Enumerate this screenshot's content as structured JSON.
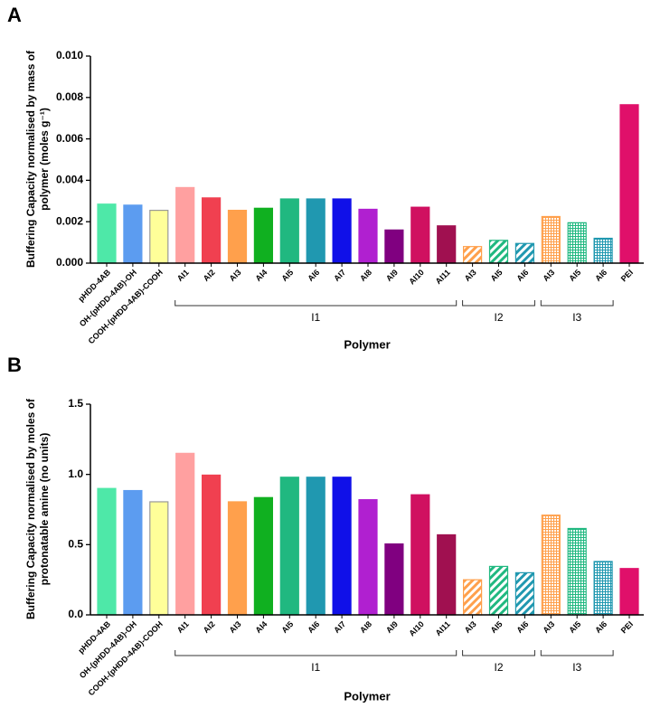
{
  "chart_data": [
    {
      "type": "bar",
      "panel_label": "A",
      "ylabel": "Buffering Capacity normalised by mass of polymer (moles g⁻¹)",
      "xlabel": "Polymer",
      "ylim": [
        0,
        0.01
      ],
      "yticks": [
        {
          "value": 0,
          "label": "0.000"
        },
        {
          "value": 0.002,
          "label": "0.002"
        },
        {
          "value": 0.004,
          "label": "0.004"
        },
        {
          "value": 0.006,
          "label": "0.006"
        },
        {
          "value": 0.008,
          "label": "0.008"
        },
        {
          "value": 0.01,
          "label": "0.010"
        }
      ],
      "groups": [
        {
          "name": null,
          "pattern": "solid",
          "categories": [
            "pHDD-4AB",
            "OH-(pHDD-4AB)-OH",
            "COOH-(pHDD-4AB)-COOH"
          ],
          "values": [
            0.00285,
            0.0028,
            0.00255
          ],
          "colors": [
            "#4ee8a8",
            "#5c9cf0",
            "#ffff99"
          ]
        },
        {
          "name": "I1",
          "pattern": "solid",
          "categories": [
            "AI1",
            "AI2",
            "AI3",
            "AI4",
            "AI5",
            "AI6",
            "AI7",
            "AI8",
            "AI9",
            "AI10",
            "AI11"
          ],
          "values": [
            0.00365,
            0.00315,
            0.00255,
            0.00265,
            0.0031,
            0.0031,
            0.0031,
            0.0026,
            0.0016,
            0.0027,
            0.0018
          ],
          "colors": [
            "#ffa0a0",
            "#f04050",
            "#ffa04c",
            "#10b020",
            "#20b880",
            "#2098b0",
            "#1010e8",
            "#b020d0",
            "#800080",
            "#d01060",
            "#a01050"
          ]
        },
        {
          "name": "I2",
          "pattern": "diagonal",
          "categories": [
            "AI3",
            "AI5",
            "AI6"
          ],
          "values": [
            0.0008,
            0.0011,
            0.00095
          ],
          "colors": [
            "#ffa04c",
            "#20b880",
            "#2098b0"
          ]
        },
        {
          "name": "I3",
          "pattern": "crosshatch",
          "categories": [
            "AI3",
            "AI5",
            "AI6"
          ],
          "values": [
            0.00225,
            0.00195,
            0.0012
          ],
          "colors": [
            "#ffa04c",
            "#20b880",
            "#2098b0"
          ]
        },
        {
          "name": null,
          "pattern": "solid",
          "categories": [
            "PEI"
          ],
          "values": [
            0.00765
          ],
          "colors": [
            "#e0106a"
          ]
        }
      ]
    },
    {
      "type": "bar",
      "panel_label": "B",
      "ylabel": "Buffering Capacity normalised by moles of protonatable amine (no units)",
      "xlabel": "Polymer",
      "ylim": [
        0,
        1.5
      ],
      "yticks": [
        {
          "value": 0,
          "label": "0.0"
        },
        {
          "value": 0.5,
          "label": "0.5"
        },
        {
          "value": 1,
          "label": "1.0"
        },
        {
          "value": 1.5,
          "label": "1.5"
        }
      ],
      "groups": [
        {
          "name": null,
          "pattern": "solid",
          "categories": [
            "pHDD-4AB",
            "OH-(pHDD-4AB)-OH",
            "COOH-(pHDD-4AB)-COOH"
          ],
          "values": [
            0.9,
            0.885,
            0.805
          ],
          "colors": [
            "#4ee8a8",
            "#5c9cf0",
            "#ffff99"
          ]
        },
        {
          "name": "I1",
          "pattern": "solid",
          "categories": [
            "AI1",
            "AI2",
            "AI3",
            "AI4",
            "AI5",
            "AI6",
            "AI7",
            "AI8",
            "AI9",
            "AI10",
            "AI11"
          ],
          "values": [
            1.15,
            0.995,
            0.805,
            0.835,
            0.98,
            0.98,
            0.98,
            0.82,
            0.505,
            0.855,
            0.57
          ],
          "colors": [
            "#ffa0a0",
            "#f04050",
            "#ffa04c",
            "#10b020",
            "#20b880",
            "#2098b0",
            "#1010e8",
            "#b020d0",
            "#800080",
            "#d01060",
            "#a01050"
          ]
        },
        {
          "name": "I2",
          "pattern": "diagonal",
          "categories": [
            "AI3",
            "AI5",
            "AI6"
          ],
          "values": [
            0.25,
            0.345,
            0.3
          ],
          "colors": [
            "#ffa04c",
            "#20b880",
            "#2098b0"
          ]
        },
        {
          "name": "I3",
          "pattern": "crosshatch",
          "categories": [
            "AI3",
            "AI5",
            "AI6"
          ],
          "values": [
            0.71,
            0.615,
            0.38
          ],
          "colors": [
            "#ffa04c",
            "#20b880",
            "#2098b0"
          ]
        },
        {
          "name": null,
          "pattern": "solid",
          "categories": [
            "PEI"
          ],
          "values": [
            0.33
          ],
          "colors": [
            "#e0106a"
          ]
        }
      ]
    }
  ]
}
